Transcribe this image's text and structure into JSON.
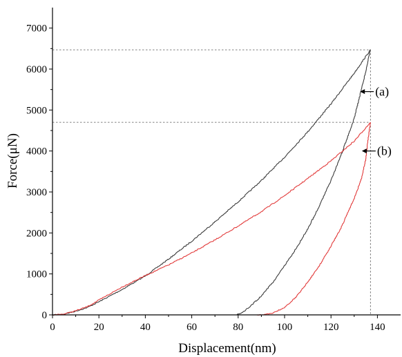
{
  "chart_data": {
    "type": "line",
    "title": "",
    "xlabel": "Displacement(nm)",
    "ylabel": "Force(μN)",
    "xlim": [
      0,
      150
    ],
    "ylim": [
      0,
      7500
    ],
    "x_ticks": [
      0,
      20,
      40,
      60,
      80,
      100,
      120,
      140
    ],
    "y_ticks": [
      0,
      1000,
      2000,
      3000,
      4000,
      5000,
      6000,
      7000
    ],
    "grid": false,
    "series": [
      {
        "name": "(a)",
        "color": "#3a3a3a",
        "loading": {
          "x": [
            0,
            5,
            10,
            15,
            20,
            30,
            40,
            50,
            60,
            70,
            80,
            90,
            100,
            110,
            120,
            130,
            137
          ],
          "y": [
            0,
            20,
            90,
            180,
            320,
            620,
            950,
            1360,
            1800,
            2270,
            2760,
            3280,
            3850,
            4470,
            5150,
            5900,
            6470
          ]
        },
        "unloading": {
          "x": [
            137,
            134,
            130,
            125,
            120,
            115,
            110,
            105,
            100,
            95,
            90,
            85,
            82,
            79
          ],
          "y": [
            6470,
            5700,
            4800,
            4000,
            3280,
            2660,
            2100,
            1620,
            1200,
            800,
            460,
            200,
            60,
            0
          ]
        },
        "baseline": {
          "x": [
            0,
            79
          ],
          "y": [
            0,
            0
          ]
        }
      },
      {
        "name": "(b)",
        "color": "#e23a3a",
        "loading": {
          "x": [
            0,
            5,
            10,
            15,
            20,
            30,
            40,
            50,
            60,
            70,
            80,
            90,
            100,
            110,
            120,
            130,
            137
          ],
          "y": [
            0,
            20,
            100,
            200,
            360,
            680,
            960,
            1220,
            1510,
            1830,
            2170,
            2520,
            2910,
            3330,
            3760,
            4240,
            4700
          ]
        },
        "unloading": {
          "x": [
            137,
            136,
            135,
            133,
            130,
            125,
            120,
            115,
            110,
            105,
            100,
            95,
            92,
            90,
            88
          ],
          "y": [
            4700,
            4300,
            3800,
            3300,
            2850,
            2200,
            1680,
            1200,
            800,
            440,
            180,
            50,
            15,
            5,
            0
          ]
        },
        "baseline": {
          "x": [
            0,
            88
          ],
          "y": [
            0,
            0
          ]
        }
      }
    ],
    "reference_lines": [
      {
        "series": "(a)",
        "x": 137,
        "y": 6470
      },
      {
        "series": "(b)",
        "x": 137,
        "y": 4700
      }
    ],
    "annotations": [
      {
        "text": "(a)",
        "target_series": "(a)"
      },
      {
        "text": "(b)",
        "target_series": "(b)"
      }
    ]
  }
}
